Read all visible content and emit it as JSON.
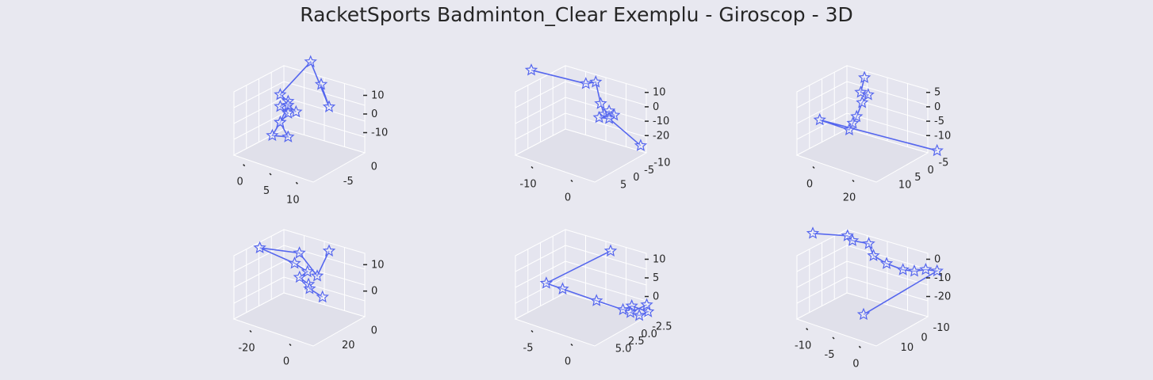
{
  "title": "RacketSports Badminton_Clear Exemplu - Giroscop - 3D",
  "colors": {
    "background": "#e8e8f0",
    "pane": "#e5e5ef",
    "grid": "#ffffff",
    "line": "#5566ee",
    "marker_fill": "#ffffff"
  },
  "marker": "star-icon",
  "chart_data": [
    {
      "type": "scatter3d",
      "xticks": [
        "0",
        "5",
        "10"
      ],
      "yticks": [
        "-5",
        "0"
      ],
      "zticks": [
        "10",
        "0",
        "-10"
      ],
      "points": [
        [
          9,
          1,
          15
        ],
        [
          10,
          1,
          10
        ],
        [
          2,
          -1,
          10
        ],
        [
          1,
          0,
          4
        ],
        [
          2,
          0,
          3
        ],
        [
          1,
          0,
          1
        ],
        [
          2,
          0,
          0
        ],
        [
          1,
          0,
          -3
        ],
        [
          2,
          0,
          -6
        ],
        [
          0,
          0,
          -7
        ],
        [
          1,
          0,
          -3
        ],
        [
          2,
          0,
          2
        ],
        [
          3,
          0,
          1
        ]
      ]
    },
    {
      "type": "scatter3d",
      "xticks": [
        "-10",
        "0"
      ],
      "yticks": [
        "5",
        "0",
        "-5",
        "-10"
      ],
      "zticks": [
        "10",
        "0",
        "-10",
        "-20"
      ],
      "points": [
        [
          -13,
          5,
          6
        ],
        [
          -2,
          5,
          8
        ],
        [
          0,
          5,
          10
        ],
        [
          1,
          5,
          2
        ],
        [
          1,
          4,
          -3
        ],
        [
          2,
          4,
          -1
        ],
        [
          3,
          4,
          -2
        ],
        [
          0,
          4,
          -5
        ],
        [
          2,
          4,
          -4
        ],
        [
          0,
          -8,
          -25
        ]
      ]
    },
    {
      "type": "scatter3d",
      "xticks": [
        "0",
        "20"
      ],
      "yticks": [
        "10",
        "5",
        "0",
        "-5"
      ],
      "zticks": [
        "5",
        "0",
        "-5",
        "-10"
      ],
      "points": [
        [
          20,
          10,
          10
        ],
        [
          18,
          10,
          6
        ],
        [
          22,
          10,
          6
        ],
        [
          15,
          8,
          2
        ],
        [
          12,
          8,
          -2
        ],
        [
          10,
          8,
          -4
        ],
        [
          8,
          8,
          -6
        ],
        [
          -8,
          8,
          -6
        ],
        [
          35,
          -3,
          -12
        ]
      ]
    },
    {
      "type": "scatter3d",
      "xticks": [
        "-20",
        "0"
      ],
      "yticks": [
        "20",
        "0"
      ],
      "zticks": [
        "10",
        "0"
      ],
      "points": [
        [
          15,
          10,
          15
        ],
        [
          12,
          10,
          8
        ],
        [
          5,
          8,
          10
        ],
        [
          -5,
          8,
          8
        ],
        [
          0,
          5,
          4
        ],
        [
          2,
          4,
          2
        ],
        [
          0,
          4,
          0
        ],
        [
          1,
          3,
          -2
        ],
        [
          0,
          2,
          -4
        ],
        [
          2,
          1,
          -6
        ]
      ]
    },
    {
      "type": "scatter3d",
      "xticks": [
        "-5",
        "0"
      ],
      "yticks": [
        "5.0",
        "2.5",
        "0.0",
        "-2.5"
      ],
      "zticks": [
        "10",
        "5",
        "0"
      ],
      "points": [
        [
          2,
          5,
          11
        ],
        [
          -7,
          3,
          1
        ],
        [
          -6,
          2,
          0
        ],
        [
          -3,
          1,
          -1
        ],
        [
          0,
          1,
          -1
        ],
        [
          1,
          1,
          0
        ],
        [
          2,
          0,
          -1
        ],
        [
          1,
          0,
          -2
        ],
        [
          0,
          0,
          -2
        ],
        [
          1,
          -1,
          -1
        ]
      ]
    },
    {
      "type": "scatter3d",
      "xticks": [
        "-10",
        "-5",
        "0"
      ],
      "yticks": [
        "10",
        "0",
        "-10"
      ],
      "zticks": [
        "0",
        "-10",
        "-20"
      ],
      "points": [
        [
          -8,
          10,
          3
        ],
        [
          -1,
          10,
          6
        ],
        [
          0,
          10,
          5
        ],
        [
          2,
          8,
          4
        ],
        [
          1,
          5,
          -2
        ],
        [
          3,
          4,
          -4
        ],
        [
          5,
          2,
          -6
        ],
        [
          6,
          0,
          -7
        ],
        [
          7,
          -2,
          -7
        ],
        [
          8,
          -4,
          -8
        ],
        [
          -1,
          5,
          -22
        ]
      ]
    }
  ]
}
